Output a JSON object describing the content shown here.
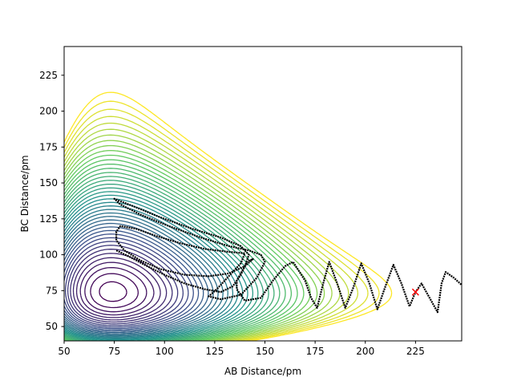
{
  "chart_data": {
    "type": "contour",
    "title": "",
    "xlabel": "AB Distance/pm",
    "ylabel": "BC Distance/pm",
    "xlim": [
      50,
      248
    ],
    "ylim": [
      40,
      245
    ],
    "xticks": [
      50,
      75,
      100,
      125,
      150,
      175,
      200,
      225
    ],
    "yticks": [
      50,
      75,
      100,
      125,
      150,
      175,
      200,
      225
    ],
    "grid": false,
    "colormap": [
      "#440154",
      "#3b528b",
      "#21918c",
      "#5ec962",
      "#fde725"
    ],
    "contour_levels": 42,
    "trajectory": {
      "color": "#000000",
      "points": [
        [
          76,
          103
        ],
        [
          82,
          99
        ],
        [
          90,
          93
        ],
        [
          100,
          86
        ],
        [
          110,
          80
        ],
        [
          120,
          76
        ],
        [
          128,
          74
        ],
        [
          134,
          78
        ],
        [
          138,
          86
        ],
        [
          141,
          95
        ],
        [
          144,
          97
        ],
        [
          140,
          92
        ],
        [
          132,
          87
        ],
        [
          122,
          85
        ],
        [
          110,
          86
        ],
        [
          98,
          90
        ],
        [
          88,
          96
        ],
        [
          80,
          103
        ],
        [
          76,
          110
        ],
        [
          76,
          116
        ],
        [
          78,
          120
        ],
        [
          86,
          118
        ],
        [
          96,
          113
        ],
        [
          108,
          108
        ],
        [
          120,
          104
        ],
        [
          132,
          102
        ],
        [
          140,
          101
        ],
        [
          138,
          94
        ],
        [
          132,
          85
        ],
        [
          126,
          76
        ],
        [
          122,
          71
        ],
        [
          128,
          69
        ],
        [
          138,
          72
        ],
        [
          146,
          84
        ],
        [
          150,
          95
        ],
        [
          148,
          100
        ],
        [
          142,
          103
        ],
        [
          132,
          106
        ],
        [
          118,
          112
        ],
        [
          102,
          120
        ],
        [
          88,
          128
        ],
        [
          78,
          135
        ],
        [
          75,
          139
        ],
        [
          84,
          134
        ],
        [
          98,
          126
        ],
        [
          114,
          118
        ],
        [
          128,
          112
        ],
        [
          138,
          106
        ],
        [
          142,
          100
        ],
        [
          140,
          92
        ],
        [
          136,
          82
        ],
        [
          136,
          76
        ],
        [
          140,
          68
        ],
        [
          148,
          70
        ],
        [
          154,
          82
        ],
        [
          160,
          92
        ],
        [
          164,
          95
        ],
        [
          170,
          82
        ],
        [
          173,
          70
        ],
        [
          176,
          63
        ],
        [
          179,
          80
        ],
        [
          182,
          95
        ],
        [
          186,
          80
        ],
        [
          190,
          63
        ],
        [
          194,
          77
        ],
        [
          198,
          94
        ],
        [
          202,
          80
        ],
        [
          206,
          62
        ],
        [
          210,
          78
        ],
        [
          214,
          93
        ],
        [
          218,
          80
        ],
        [
          222,
          64
        ],
        [
          225,
          74
        ],
        [
          228,
          80
        ],
        [
          232,
          70
        ],
        [
          236,
          60
        ],
        [
          238,
          80
        ],
        [
          240,
          88
        ],
        [
          244,
          84
        ],
        [
          248,
          79
        ]
      ]
    },
    "marker": {
      "x": 225,
      "y": 74,
      "symbol": "x",
      "color": "#ff0000"
    }
  }
}
